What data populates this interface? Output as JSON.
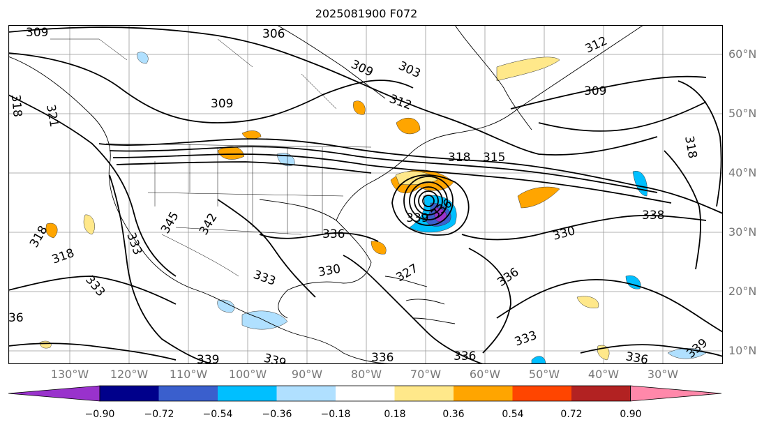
{
  "title": "2025081900 F072",
  "lat_labels": [
    "60°N",
    "50°N",
    "40°N",
    "30°N",
    "20°N",
    "10°N"
  ],
  "lon_labels": [
    "130°W",
    "120°W",
    "110°W",
    "100°W",
    "90°W",
    "80°W",
    "70°W",
    "60°W",
    "50°W",
    "40°W",
    "30°W"
  ],
  "contour_labels": [
    "309",
    "306",
    "309",
    "303",
    "312",
    "312",
    "309",
    "321",
    "318",
    "309",
    "318",
    "315",
    "318",
    "333",
    "345",
    "342",
    "336",
    "339",
    "336",
    "330",
    "338",
    "318",
    "333",
    "318",
    "330",
    "333",
    "336",
    "327",
    "36",
    "339",
    "339",
    "336",
    "336",
    "333",
    "336",
    "339"
  ],
  "colorbar": {
    "ticks": [
      "−0.90",
      "−0.72",
      "−0.54",
      "−0.36",
      "−0.18",
      "0.18",
      "0.36",
      "0.54",
      "0.72",
      "0.90"
    ],
    "colors": [
      "#9932cc",
      "#00008b",
      "#3a5fcd",
      "#00bfff",
      "#b0e0ff",
      "#ffffff",
      "#ffe88a",
      "#ffa500",
      "#ff4500",
      "#b22222",
      "#ff88aa"
    ]
  }
}
